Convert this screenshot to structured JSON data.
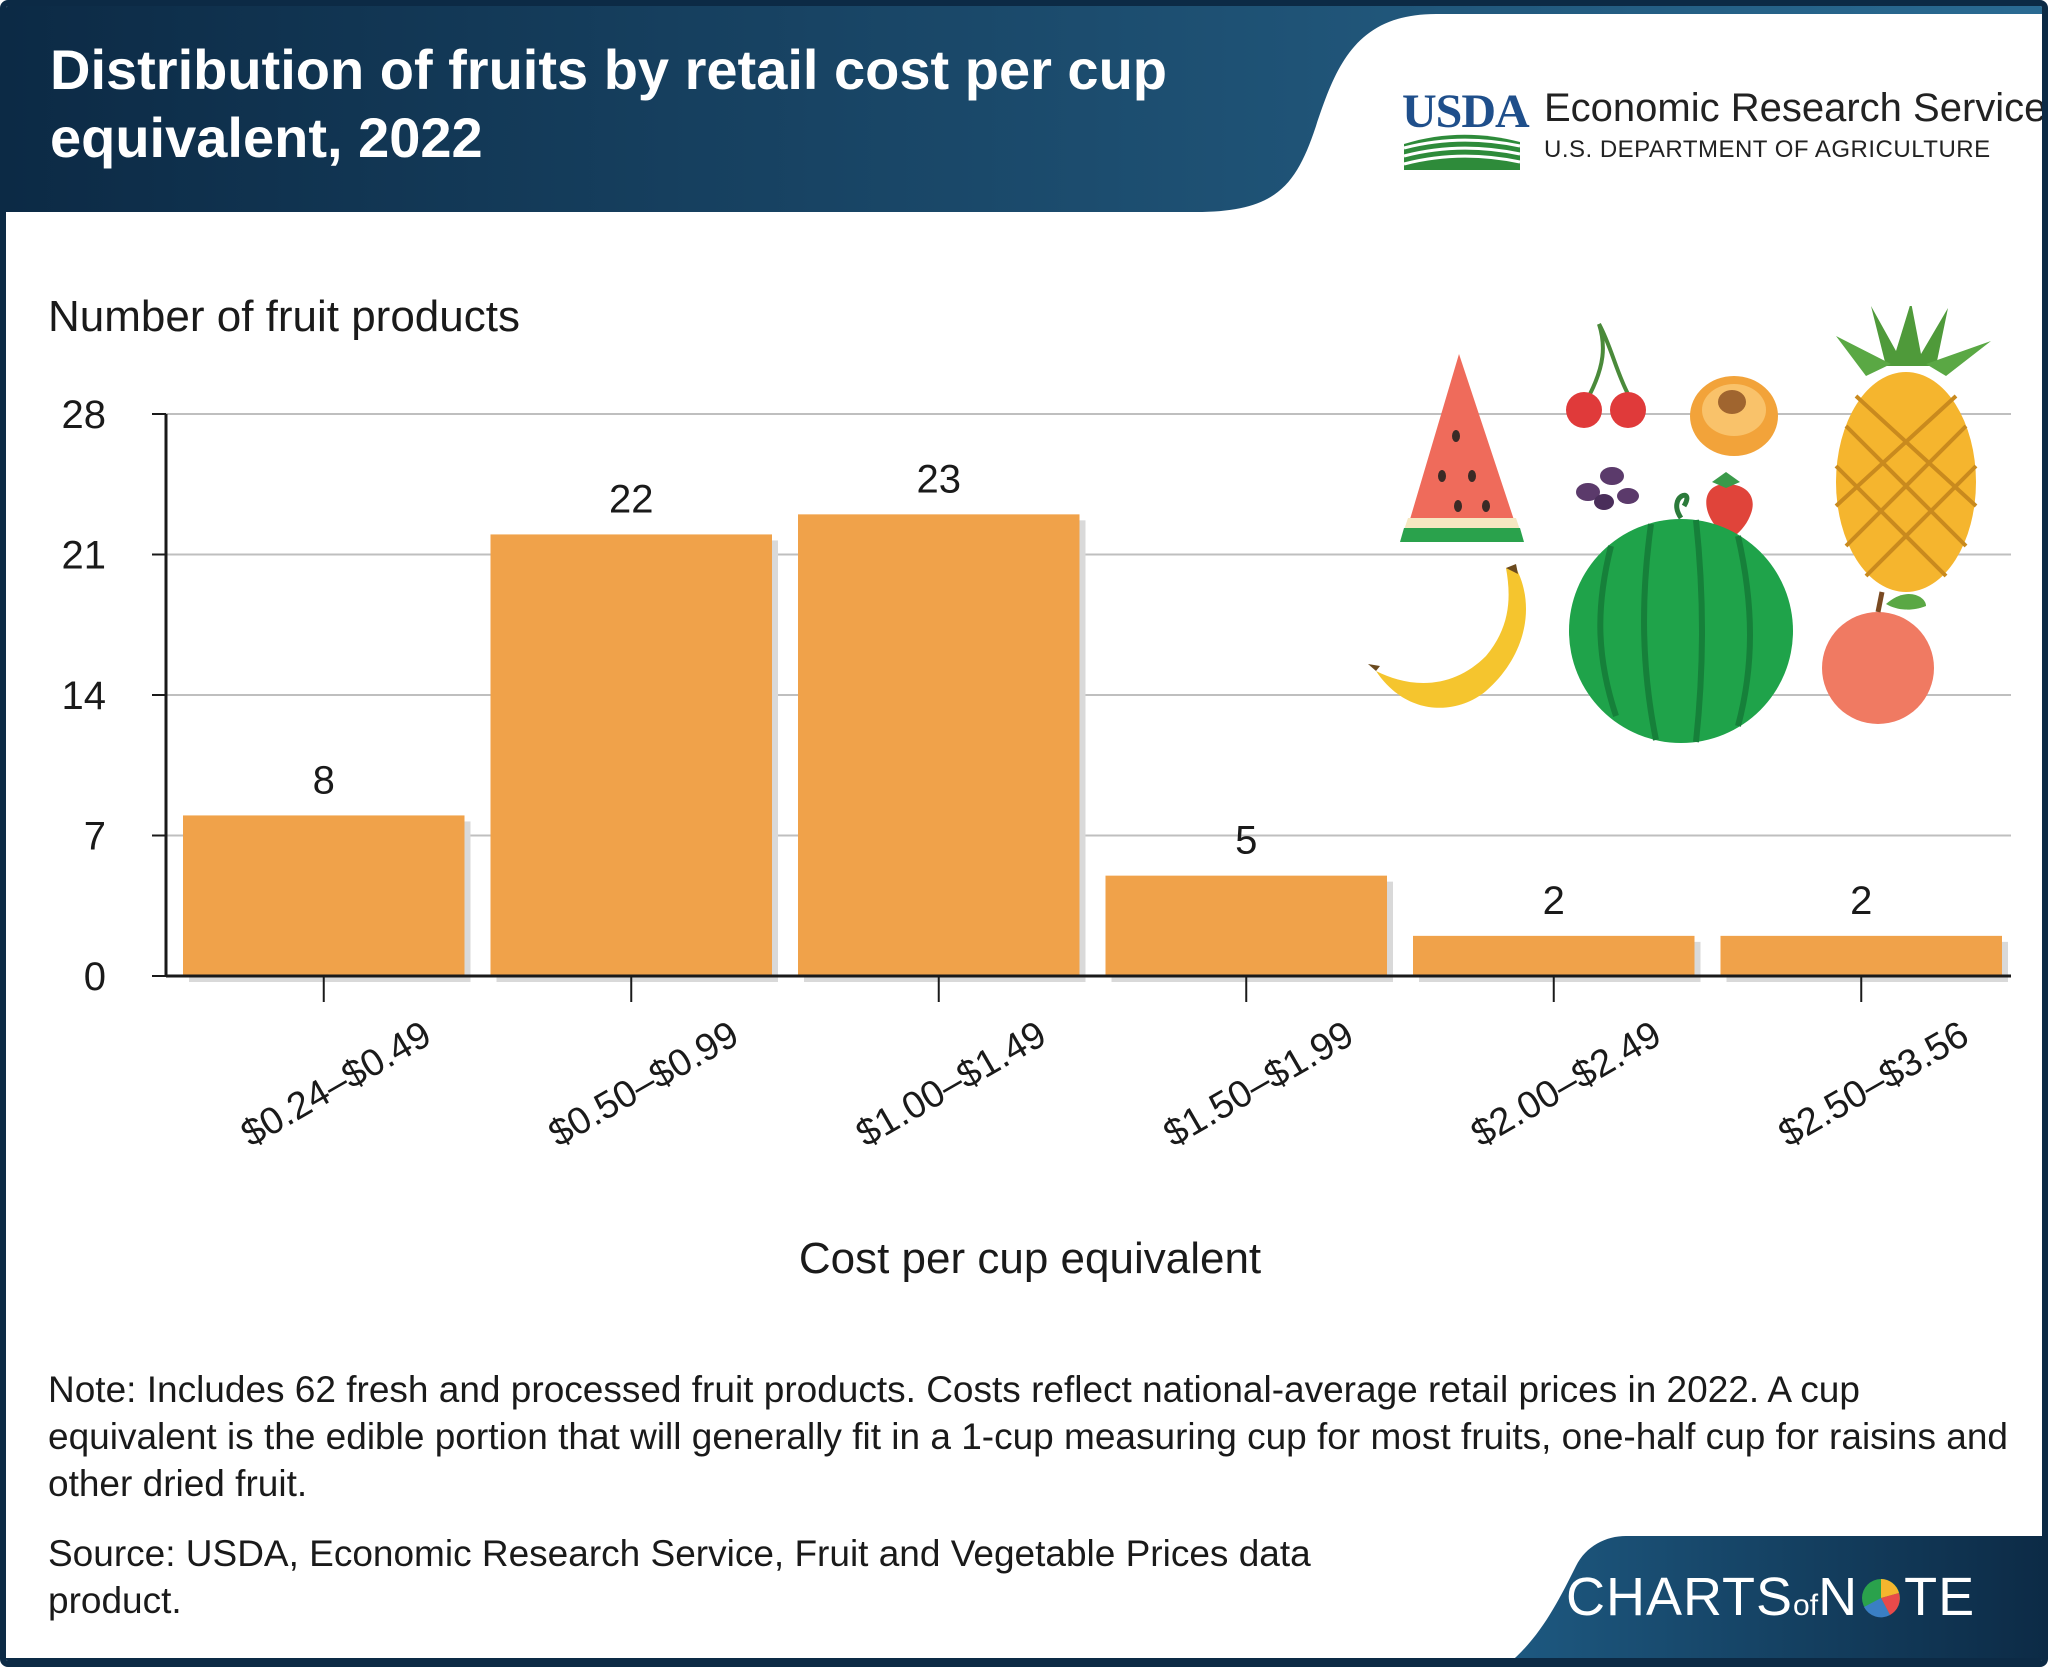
{
  "header": {
    "title": "Distribution of fruits by retail cost per cup equivalent, 2022",
    "logo_mark": "USDA",
    "agency_name": "Economic Research Service",
    "department": "U.S. DEPARTMENT OF AGRICULTURE"
  },
  "chart_data": {
    "type": "bar",
    "title": "Distribution of fruits by retail cost per cup equivalent, 2022",
    "ylabel": "Number of fruit products",
    "xlabel": "Cost per cup equivalent",
    "categories": [
      "$0.24–$0.49",
      "$0.50–$0.99",
      "$1.00–$1.49",
      "$1.50–$1.99",
      "$2.00–$2.49",
      "$2.50–$3.56"
    ],
    "values": [
      8,
      22,
      23,
      5,
      2,
      2
    ],
    "data_labels": [
      "8",
      "22",
      "23",
      "5",
      "2",
      "2"
    ],
    "yticks": [
      0,
      7,
      14,
      21,
      28
    ],
    "ylim": [
      0,
      28
    ],
    "grid": true,
    "bar_color": "#f0a24a",
    "gridline_color": "#bfbfbf"
  },
  "notes": {
    "note": "Note: Includes 62 fresh and processed fruit products. Costs reflect national-average retail prices in 2022. A cup equivalent is the edible portion that will generally fit in a 1-cup measuring cup for most fruits, one-half cup for raisins and other dried fruit.",
    "source": "Source: USDA, Economic Research Service, Fruit and Vegetable Prices data product."
  },
  "footer": {
    "brand_part1": "CHARTS",
    "brand_of": "of",
    "brand_part2": "N",
    "brand_part3": "TE"
  },
  "colors": {
    "navy": "#0c2a45",
    "header_gradient_end": "#2a6b93",
    "usda_blue": "#1f4f8b",
    "usda_green": "#2e8b3a"
  },
  "icons": [
    "watermelon-slice-icon",
    "cherries-icon",
    "peach-icon",
    "pineapple-icon",
    "raisins-icon",
    "strawberry-icon",
    "watermelon-icon",
    "banana-icon",
    "apple-icon",
    "usda-logo-icon",
    "pie-chart-icon"
  ]
}
